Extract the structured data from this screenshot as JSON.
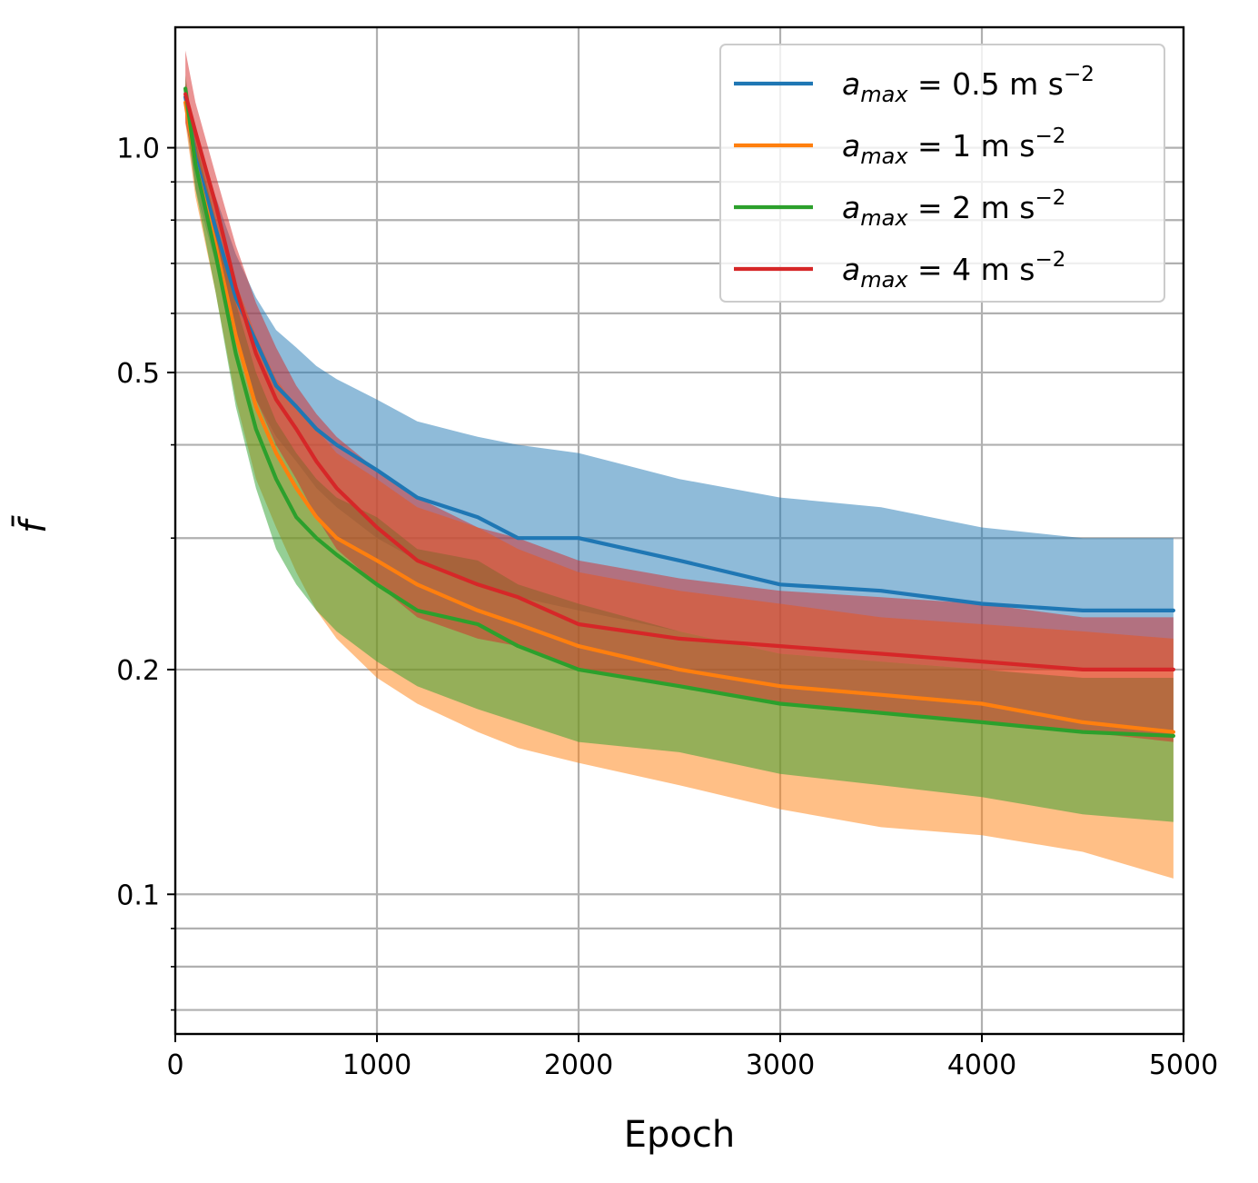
{
  "chart_data": {
    "type": "line",
    "xlabel": "Epoch",
    "ylabel": "f̄",
    "xlim": [
      0,
      5000
    ],
    "ylim": [
      0.065,
      1.45
    ],
    "yscale": "log",
    "grid": true,
    "legend_position": "top-right",
    "x_ticks": [
      0,
      1000,
      2000,
      3000,
      4000,
      5000
    ],
    "x_tick_labels": [
      "0",
      "1000",
      "2000",
      "3000",
      "4000",
      "5000"
    ],
    "y_ticks": [
      0.1,
      0.2,
      0.5,
      1.0
    ],
    "y_tick_labels": [
      "0.1",
      "0.2",
      "0.5",
      "1.0"
    ],
    "x": [
      50,
      100,
      200,
      300,
      400,
      500,
      600,
      700,
      800,
      1000,
      1200,
      1500,
      1700,
      2000,
      2500,
      3000,
      3500,
      4000,
      4500,
      4950
    ],
    "series": [
      {
        "name": "a_max = 0.5 m s^-2",
        "legend_main": "a",
        "legend_sub": "max",
        "legend_rest": " = 0.5 m s",
        "legend_sup": "−2",
        "color": "#1f77b4",
        "mean": [
          1.17,
          0.97,
          0.78,
          0.63,
          0.55,
          0.48,
          0.45,
          0.42,
          0.4,
          0.37,
          0.34,
          0.32,
          0.3,
          0.3,
          0.28,
          0.26,
          0.255,
          0.245,
          0.24,
          0.24
        ],
        "lower": [
          1.1,
          0.88,
          0.7,
          0.55,
          0.46,
          0.41,
          0.38,
          0.35,
          0.33,
          0.3,
          0.28,
          0.26,
          0.25,
          0.24,
          0.225,
          0.21,
          0.205,
          0.2,
          0.2,
          0.2
        ],
        "upper": [
          1.22,
          1.05,
          0.86,
          0.72,
          0.63,
          0.57,
          0.54,
          0.51,
          0.49,
          0.46,
          0.43,
          0.41,
          0.4,
          0.39,
          0.36,
          0.34,
          0.33,
          0.31,
          0.3,
          0.3
        ]
      },
      {
        "name": "a_max = 1 m s^-2",
        "legend_main": "a",
        "legend_sub": "max",
        "legend_rest": " = 1 m s",
        "legend_sup": "−2",
        "color": "#ff7f0e",
        "mean": [
          1.15,
          0.95,
          0.74,
          0.56,
          0.45,
          0.39,
          0.35,
          0.32,
          0.3,
          0.28,
          0.26,
          0.24,
          0.23,
          0.215,
          0.2,
          0.19,
          0.185,
          0.18,
          0.17,
          0.165
        ],
        "lower": [
          1.08,
          0.86,
          0.64,
          0.46,
          0.36,
          0.31,
          0.27,
          0.24,
          0.22,
          0.195,
          0.18,
          0.165,
          0.157,
          0.15,
          0.14,
          0.13,
          0.123,
          0.12,
          0.114,
          0.105
        ],
        "upper": [
          1.22,
          1.04,
          0.84,
          0.66,
          0.56,
          0.49,
          0.45,
          0.42,
          0.39,
          0.36,
          0.33,
          0.31,
          0.29,
          0.27,
          0.255,
          0.245,
          0.235,
          0.23,
          0.225,
          0.22
        ]
      },
      {
        "name": "a_max = 2 m s^-2",
        "legend_main": "a",
        "legend_sub": "max",
        "legend_rest": " = 2 m s",
        "legend_sup": "−2",
        "color": "#2ca02c",
        "mean": [
          1.2,
          0.95,
          0.72,
          0.53,
          0.42,
          0.36,
          0.32,
          0.3,
          0.285,
          0.26,
          0.24,
          0.23,
          0.215,
          0.2,
          0.19,
          0.18,
          0.175,
          0.17,
          0.165,
          0.163
        ],
        "lower": [
          1.13,
          0.88,
          0.64,
          0.45,
          0.35,
          0.29,
          0.26,
          0.24,
          0.225,
          0.205,
          0.19,
          0.177,
          0.17,
          0.16,
          0.155,
          0.145,
          0.14,
          0.135,
          0.128,
          0.125
        ],
        "upper": [
          1.25,
          1.02,
          0.8,
          0.62,
          0.5,
          0.43,
          0.39,
          0.36,
          0.34,
          0.32,
          0.29,
          0.28,
          0.26,
          0.245,
          0.225,
          0.21,
          0.205,
          0.2,
          0.195,
          0.195
        ]
      },
      {
        "name": "a_max = 4 m s^-2",
        "legend_main": "a",
        "legend_sub": "max",
        "legend_rest": " = 4 m s",
        "legend_sup": "−2",
        "color": "#d62728",
        "mean": [
          1.18,
          1.05,
          0.84,
          0.65,
          0.53,
          0.46,
          0.42,
          0.38,
          0.35,
          0.31,
          0.28,
          0.26,
          0.25,
          0.23,
          0.22,
          0.215,
          0.21,
          0.205,
          0.2,
          0.2
        ],
        "lower": [
          1.08,
          0.94,
          0.74,
          0.57,
          0.46,
          0.4,
          0.36,
          0.32,
          0.29,
          0.26,
          0.235,
          0.22,
          0.215,
          0.2,
          0.19,
          0.18,
          0.175,
          0.17,
          0.165,
          0.16
        ],
        "upper": [
          1.35,
          1.15,
          0.92,
          0.74,
          0.62,
          0.54,
          0.48,
          0.44,
          0.41,
          0.37,
          0.34,
          0.31,
          0.3,
          0.28,
          0.265,
          0.255,
          0.25,
          0.245,
          0.235,
          0.235
        ]
      }
    ]
  }
}
